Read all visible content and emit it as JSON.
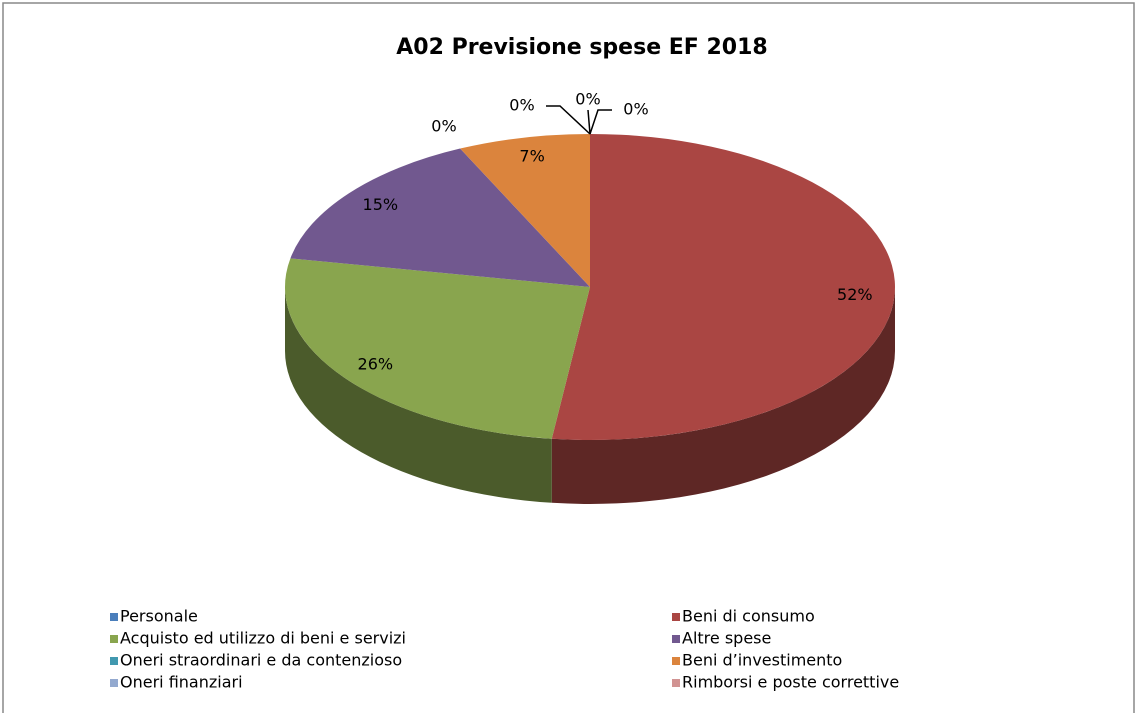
{
  "chart_data": {
    "type": "pie3d",
    "title": "A02 Previsione spese EF 2018",
    "categories": [
      "Personale",
      "Beni di consumo",
      "Acquisto ed utilizzo di beni e servizi",
      "Altre spese",
      "Oneri straordinari e da contenzioso",
      "Beni d’investimento",
      "Oneri finanziari",
      "Rimborsi e poste correttive"
    ],
    "values": [
      0,
      52,
      26,
      15,
      0,
      7,
      0,
      0
    ],
    "value_labels": [
      "0%",
      "52%",
      "26%",
      "15%",
      "0%",
      "7%",
      "0%",
      "0%"
    ],
    "colors": [
      "#4a7ebb",
      "#aa4643",
      "#89a54e",
      "#71588f",
      "#4198af",
      "#db843d",
      "#93a9cf",
      "#d19392"
    ],
    "legend": "bottom"
  }
}
